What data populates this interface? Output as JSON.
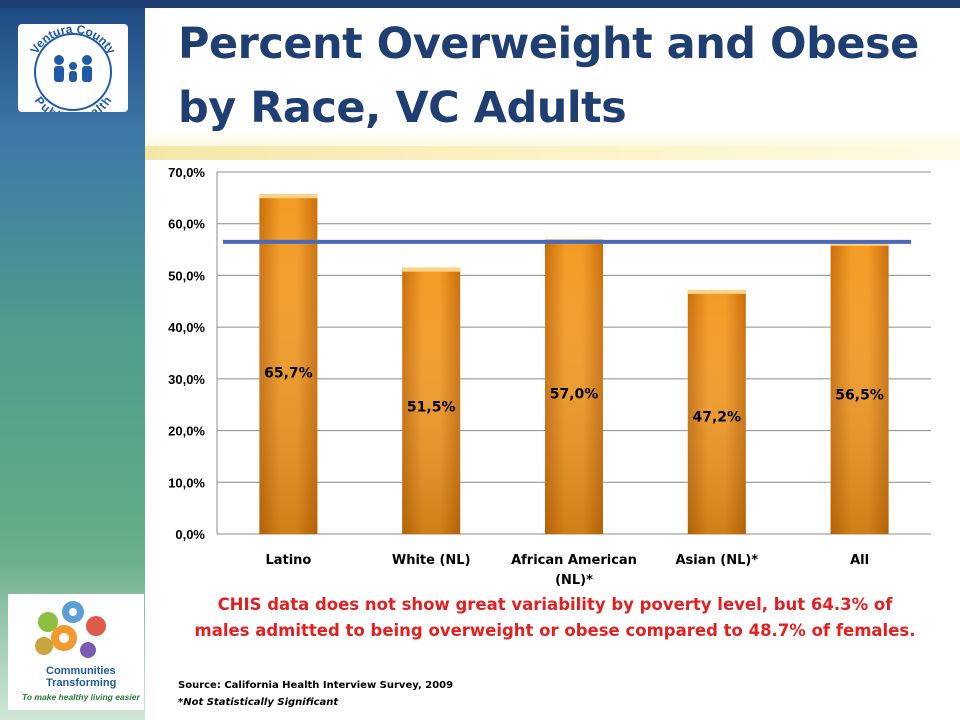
{
  "title": "Percent Overweight and Obese by Race, VC Adults",
  "logo_top": {
    "line1": "Ventura County",
    "line2": "Public Health"
  },
  "logo_bottom": {
    "line1": "Communities",
    "line2": "Transforming",
    "tagline": "To make healthy living easier"
  },
  "chart_data": {
    "type": "bar",
    "categories": [
      "Latino",
      "White (NL)",
      "African American (NL)*",
      "Asian (NL)*",
      "All"
    ],
    "category_label_lines": [
      [
        "Latino"
      ],
      [
        "White (NL)"
      ],
      [
        "African American",
        "(NL)*"
      ],
      [
        "Asian (NL)*"
      ],
      [
        "All"
      ]
    ],
    "values": [
      65.7,
      51.5,
      57.0,
      47.2,
      56.5
    ],
    "value_labels": [
      "65,7%",
      "51,5%",
      "57,0%",
      "47,2%",
      "56,5%"
    ],
    "reference_line": 56.5,
    "ylim": [
      0,
      70
    ],
    "yticks": [
      "0,0%",
      "10,0%",
      "20,0%",
      "30,0%",
      "40,0%",
      "50,0%",
      "60,0%",
      "70,0%"
    ],
    "ytick_values": [
      0,
      10,
      20,
      30,
      40,
      50,
      60,
      70
    ],
    "grid": true,
    "title": "",
    "xlabel": "",
    "ylabel": "",
    "colors": {
      "bar": "#e8850a",
      "bar_light": "#f7a43a",
      "bar_dark": "#c4690a",
      "reference_line": "#4a6ab8",
      "grid": "#8c8c8c"
    }
  },
  "note": "CHIS data does not show great variability by poverty level, but 64.3% of males admitted to being overweight or obese compared to 48.7% of females.",
  "source": "Source: California Health Interview Survey, 2009",
  "footnote": "*Not Statistically Significant"
}
